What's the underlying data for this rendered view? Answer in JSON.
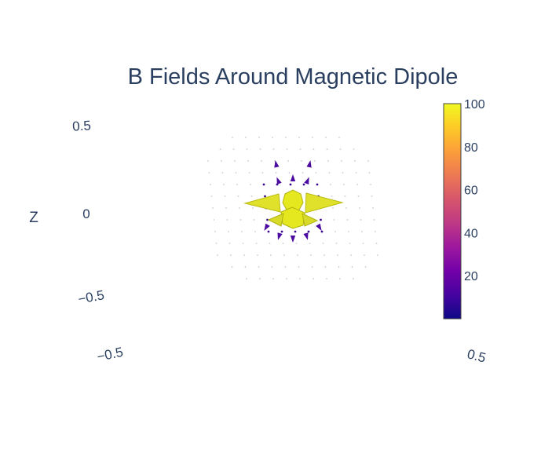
{
  "chart_data": {
    "type": "cone",
    "title": "B Fields Around Magnetic Dipole",
    "axes": {
      "z": {
        "label": "Z",
        "ticks": [
          "0.5",
          "0",
          "−0.5"
        ]
      },
      "x": {
        "ticks": [
          "−0.5"
        ]
      },
      "y": {
        "ticks": [
          "0.5"
        ]
      }
    },
    "colorbar": {
      "ticks": [
        "100",
        "80",
        "60",
        "40",
        "20"
      ],
      "tick_values": [
        100,
        80,
        60,
        40,
        20
      ],
      "range": [
        0,
        100
      ],
      "colorscale": [
        "#0d0887",
        "#46039f",
        "#7201a8",
        "#9c179e",
        "#bd3786",
        "#d8576b",
        "#ed7953",
        "#fb9f3a",
        "#fdca26",
        "#f0f921"
      ]
    },
    "background": "#ffffff",
    "text_color": "#2a3f5f"
  }
}
